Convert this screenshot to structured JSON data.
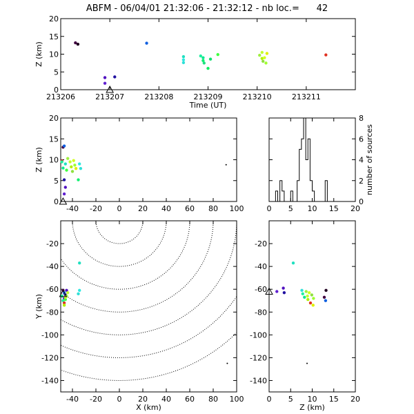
{
  "title": "ABFM - 06/04/01 21:32:06 - 21:32:12 - nb loc.=      42",
  "chart_data": [
    {
      "type": "scatter",
      "panel": "time-height",
      "xlabel": "Time (UT)",
      "ylabel": "Z (km)",
      "xlim": [
        213206,
        213212
      ],
      "ylim": [
        0,
        20
      ],
      "xticks": [
        "213206",
        "213207",
        "213208",
        "213209",
        "213210",
        "213211"
      ],
      "yticks": [
        "0",
        "5",
        "10",
        "15",
        "20"
      ],
      "station": {
        "x": 213207,
        "y": 0
      },
      "points": [
        {
          "x": 213206.3,
          "y": 13.2,
          "c": "#400040"
        },
        {
          "x": 213206.35,
          "y": 12.8,
          "c": "#200020"
        },
        {
          "x": 213206.9,
          "y": 3.4,
          "c": "#5010c0"
        },
        {
          "x": 213206.9,
          "y": 1.8,
          "c": "#6020d0"
        },
        {
          "x": 213207.1,
          "y": 3.6,
          "c": "#2010a0"
        },
        {
          "x": 213207.75,
          "y": 13.1,
          "c": "#1060e0"
        },
        {
          "x": 213208.5,
          "y": 9.3,
          "c": "#20e0c0"
        },
        {
          "x": 213208.5,
          "y": 8.4,
          "c": "#30e8e0"
        },
        {
          "x": 213208.5,
          "y": 7.6,
          "c": "#30e0d8"
        },
        {
          "x": 213208.85,
          "y": 9.5,
          "c": "#20f0a0"
        },
        {
          "x": 213208.9,
          "y": 9.0,
          "c": "#10e890"
        },
        {
          "x": 213208.9,
          "y": 8.2,
          "c": "#10f070"
        },
        {
          "x": 213208.92,
          "y": 7.5,
          "c": "#20e080"
        },
        {
          "x": 213209.0,
          "y": 6.0,
          "c": "#10f060"
        },
        {
          "x": 213209.05,
          "y": 8.6,
          "c": "#10e070"
        },
        {
          "x": 213209.2,
          "y": 9.9,
          "c": "#40ff40"
        },
        {
          "x": 213210.05,
          "y": 9.7,
          "c": "#a0f040"
        },
        {
          "x": 213210.1,
          "y": 10.5,
          "c": "#c0ff30"
        },
        {
          "x": 213210.1,
          "y": 8.8,
          "c": "#b0f000"
        },
        {
          "x": 213210.12,
          "y": 8.0,
          "c": "#90e040"
        },
        {
          "x": 213210.15,
          "y": 9.0,
          "c": "#d0ff20"
        },
        {
          "x": 213210.18,
          "y": 7.5,
          "c": "#a0ff30"
        },
        {
          "x": 213210.2,
          "y": 10.2,
          "c": "#e0f000"
        },
        {
          "x": 213211.4,
          "y": 9.8,
          "c": "#e03020"
        }
      ]
    },
    {
      "type": "scatter",
      "panel": "x-height",
      "ylabel": "Z (km)",
      "xlim": [
        -50,
        100
      ],
      "ylim": [
        0,
        20
      ],
      "xticks": [
        "-40",
        "-20",
        "0",
        "20",
        "40",
        "60",
        "80",
        "100"
      ],
      "yticks": [
        "0",
        "5",
        "10",
        "15",
        "20"
      ],
      "station": {
        "x": -48,
        "y": 0
      },
      "points": [
        {
          "x": -48,
          "y": 13.0,
          "c": "#400040"
        },
        {
          "x": -47,
          "y": 13.3,
          "c": "#1060e0"
        },
        {
          "x": -49,
          "y": 9.7,
          "c": "#e03020"
        },
        {
          "x": -47,
          "y": 5.2,
          "c": "#2010a0"
        },
        {
          "x": -46,
          "y": 3.4,
          "c": "#5010c0"
        },
        {
          "x": -47,
          "y": 1.8,
          "c": "#6020d0"
        },
        {
          "x": -49,
          "y": 9.5,
          "c": "#20f0a0"
        },
        {
          "x": -48,
          "y": 8.0,
          "c": "#10e890"
        },
        {
          "x": -46,
          "y": 9.0,
          "c": "#20e0c0"
        },
        {
          "x": -45,
          "y": 7.5,
          "c": "#40ff40"
        },
        {
          "x": -44,
          "y": 10.3,
          "c": "#a0f040"
        },
        {
          "x": -42,
          "y": 9.5,
          "c": "#c0ff30"
        },
        {
          "x": -41,
          "y": 8.3,
          "c": "#b0f000"
        },
        {
          "x": -40,
          "y": 7.2,
          "c": "#90e040"
        },
        {
          "x": -39,
          "y": 9.8,
          "c": "#d0ff20"
        },
        {
          "x": -38,
          "y": 8.7,
          "c": "#a0ff30"
        },
        {
          "x": -37,
          "y": 7.9,
          "c": "#e0f000"
        },
        {
          "x": -34,
          "y": 9.0,
          "c": "#30e8e0"
        },
        {
          "x": -33,
          "y": 7.9,
          "c": "#30e0d8"
        },
        {
          "x": -35,
          "y": 5.2,
          "c": "#10f070"
        },
        {
          "x": 91,
          "y": 8.8,
          "c": "#000000"
        }
      ]
    },
    {
      "type": "bar",
      "panel": "histogram",
      "ylabel": "number of sources",
      "xlim": [
        0,
        20
      ],
      "ylim": [
        0,
        8
      ],
      "xticks": [
        "0",
        "5",
        "10",
        "15",
        "20"
      ],
      "yticks": [
        "0",
        "2",
        "4",
        "6",
        "8"
      ],
      "bin_width": 0.5,
      "bins_start": [
        1.5,
        2.0,
        2.5,
        3.0,
        3.5,
        4.0,
        4.5,
        5.0,
        5.5,
        6.0,
        6.5,
        7.0,
        7.5,
        8.0,
        8.5,
        9.0,
        9.5,
        10.0,
        10.5,
        11.0,
        11.5,
        12.0,
        12.5,
        13.0,
        13.5
      ],
      "values": [
        1,
        0,
        2,
        1,
        0,
        0,
        0,
        1,
        0,
        0,
        2,
        5,
        6,
        8,
        4,
        6,
        2,
        1,
        0,
        0,
        0,
        0,
        0,
        2,
        0
      ]
    },
    {
      "type": "scatter",
      "panel": "plan-view",
      "xlabel": "X (km)",
      "ylabel": "Y (km)",
      "xlim": [
        -50,
        100
      ],
      "ylim": [
        -150,
        0
      ],
      "xticks": [
        "-40",
        "-20",
        "0",
        "20",
        "40",
        "60",
        "80",
        "100"
      ],
      "yticks": [
        "-140",
        "-120",
        "-100",
        "-80",
        "-60",
        "-40",
        "-20"
      ],
      "station": {
        "x": -48,
        "y": -64
      },
      "range_rings_km": [
        20,
        40,
        60,
        80,
        100,
        120,
        140
      ],
      "points": [
        {
          "x": -34,
          "y": -37,
          "c": "#20e0c0"
        },
        {
          "x": -48,
          "y": -61,
          "c": "#400040"
        },
        {
          "x": -47,
          "y": -63,
          "c": "#1060e0"
        },
        {
          "x": -46,
          "y": -65,
          "c": "#2010a0"
        },
        {
          "x": -47,
          "y": -68,
          "c": "#6020d0"
        },
        {
          "x": -45,
          "y": -61,
          "c": "#5010c0"
        },
        {
          "x": -49,
          "y": -66,
          "c": "#10e890"
        },
        {
          "x": -48,
          "y": -70,
          "c": "#20f0a0"
        },
        {
          "x": -46,
          "y": -69,
          "c": "#40ff40"
        },
        {
          "x": -47,
          "y": -72,
          "c": "#e03020"
        },
        {
          "x": -47,
          "y": -74,
          "c": "#b0f000"
        },
        {
          "x": -45,
          "y": -66,
          "c": "#a0f040"
        },
        {
          "x": -44,
          "y": -63,
          "c": "#c0ff30"
        },
        {
          "x": -46,
          "y": -67,
          "c": "#d0ff20"
        },
        {
          "x": -34,
          "y": -61,
          "c": "#30e8e0"
        },
        {
          "x": -35,
          "y": -64,
          "c": "#30e0d8"
        },
        {
          "x": 92,
          "y": -125,
          "c": "#000000"
        }
      ]
    },
    {
      "type": "scatter",
      "panel": "z-y-view",
      "xlabel": "Z (km)",
      "xlim": [
        0,
        20
      ],
      "ylim": [
        -150,
        0
      ],
      "xticks": [
        "0",
        "5",
        "10",
        "15",
        "20"
      ],
      "yticks": [
        "-140",
        "-120",
        "-100",
        "-80",
        "-60",
        "-40",
        "-20"
      ],
      "station": {
        "x": 0,
        "y": -62
      },
      "points": [
        {
          "x": 5.6,
          "y": -37,
          "c": "#20e0c0"
        },
        {
          "x": 1.8,
          "y": -62,
          "c": "#6020d0"
        },
        {
          "x": 3.3,
          "y": -59,
          "c": "#5010c0"
        },
        {
          "x": 3.5,
          "y": -63,
          "c": "#2010a0"
        },
        {
          "x": 7.6,
          "y": -61,
          "c": "#30e0d8"
        },
        {
          "x": 7.8,
          "y": -64,
          "c": "#20f0a0"
        },
        {
          "x": 8.2,
          "y": -67,
          "c": "#10e890"
        },
        {
          "x": 8.6,
          "y": -62,
          "c": "#a0f040"
        },
        {
          "x": 8.9,
          "y": -66,
          "c": "#c0ff30"
        },
        {
          "x": 9.0,
          "y": -69,
          "c": "#b0f000"
        },
        {
          "x": 9.3,
          "y": -63,
          "c": "#d0ff20"
        },
        {
          "x": 9.6,
          "y": -72,
          "c": "#e03020"
        },
        {
          "x": 9.9,
          "y": -65,
          "c": "#90e040"
        },
        {
          "x": 10.2,
          "y": -74,
          "c": "#e0f000"
        },
        {
          "x": 10.3,
          "y": -68,
          "c": "#a0ff30"
        },
        {
          "x": 12.8,
          "y": -67,
          "c": "#400040"
        },
        {
          "x": 13.2,
          "y": -61,
          "c": "#200020"
        },
        {
          "x": 13.1,
          "y": -70,
          "c": "#1060e0"
        },
        {
          "x": 8.8,
          "y": -125,
          "c": "#000000"
        }
      ]
    }
  ]
}
